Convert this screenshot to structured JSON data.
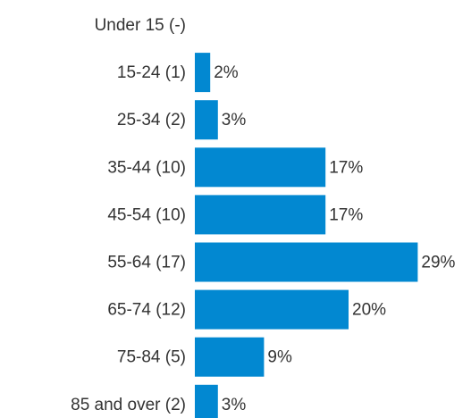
{
  "chart_data": {
    "type": "bar",
    "orientation": "horizontal",
    "categories": [
      "Under 15 (-)",
      "15-24 (1)",
      "25-34 (2)",
      "35-44 (10)",
      "45-54 (10)",
      "55-64 (17)",
      "65-74 (12)",
      "75-84 (5)",
      "85 and over (2)"
    ],
    "values": [
      null,
      2,
      3,
      17,
      17,
      29,
      20,
      9,
      3
    ],
    "value_labels": [
      null,
      "2%",
      "3%",
      "17%",
      "17%",
      "29%",
      "20%",
      "9%",
      "3%"
    ],
    "color": "#0288d1"
  }
}
